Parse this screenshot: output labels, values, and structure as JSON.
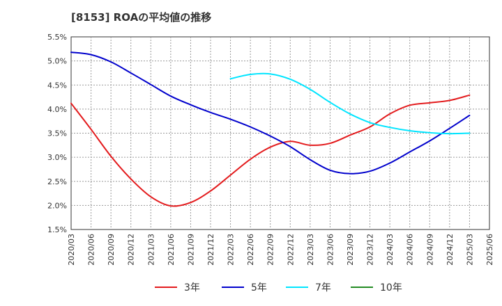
{
  "chart_data": {
    "type": "line",
    "title": "[8153]  ROAの平均値の推移",
    "xlabel": "",
    "ylabel": "",
    "ylim": [
      1.5,
      5.5
    ],
    "yticks": [
      "1.5%",
      "2.0%",
      "2.5%",
      "3.0%",
      "3.5%",
      "4.0%",
      "4.5%",
      "5.0%",
      "5.5%"
    ],
    "categories": [
      "2020/03",
      "2020/06",
      "2020/09",
      "2020/12",
      "2021/03",
      "2021/06",
      "2021/09",
      "2021/12",
      "2022/03",
      "2022/06",
      "2022/09",
      "2022/12",
      "2023/03",
      "2023/06",
      "2023/09",
      "2023/12",
      "2024/03",
      "2024/06",
      "2024/09",
      "2024/12",
      "2025/03",
      "2025/06"
    ],
    "grid": true,
    "legend_position": "bottom",
    "series": [
      {
        "name": "3年",
        "color": "#e31a1c",
        "values": [
          4.12,
          3.58,
          3.02,
          2.55,
          2.18,
          1.99,
          2.06,
          2.3,
          2.63,
          2.96,
          3.21,
          3.33,
          3.25,
          3.29,
          3.46,
          3.63,
          3.9,
          4.08,
          4.13,
          4.18,
          4.29,
          null
        ]
      },
      {
        "name": "5年",
        "color": "#0000cc",
        "values": [
          5.18,
          5.13,
          4.98,
          4.75,
          4.51,
          4.27,
          4.09,
          3.93,
          3.79,
          3.63,
          3.44,
          3.22,
          2.95,
          2.73,
          2.66,
          2.71,
          2.88,
          3.11,
          3.34,
          3.6,
          3.87,
          null
        ]
      },
      {
        "name": "7年",
        "color": "#00e5ff",
        "values": [
          null,
          null,
          null,
          null,
          null,
          null,
          null,
          null,
          4.63,
          4.72,
          4.73,
          4.62,
          4.41,
          4.14,
          3.9,
          3.72,
          3.62,
          3.55,
          3.51,
          3.49,
          3.5,
          null
        ]
      },
      {
        "name": "10年",
        "color": "#228b22",
        "values": [
          null,
          null,
          null,
          null,
          null,
          null,
          null,
          null,
          null,
          null,
          null,
          null,
          null,
          null,
          null,
          null,
          null,
          null,
          null,
          null,
          null,
          null
        ]
      }
    ]
  }
}
